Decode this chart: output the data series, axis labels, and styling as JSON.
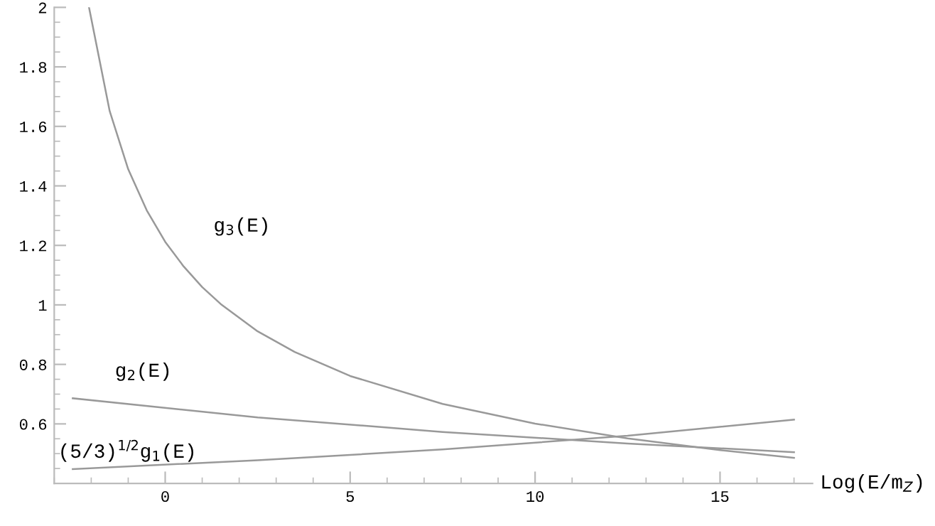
{
  "chart_data": {
    "type": "line",
    "xlabel": "Log(E/m$_{Z}$)",
    "xlim": [
      -3,
      17.5
    ],
    "ylim": [
      0.4,
      2
    ],
    "xticks": [
      0,
      5,
      10,
      15
    ],
    "yticks": [
      0.6,
      0.8,
      1,
      1.2,
      1.4,
      1.6,
      1.8,
      2
    ],
    "grid": false,
    "legend": false,
    "marker": "none",
    "line_style": "solid",
    "series": [
      {
        "name": "g$_{3}$(E)",
        "color": "#999999",
        "x": [
          -2.06,
          -1.5,
          -1,
          -0.5,
          0,
          0.5,
          1,
          1.5,
          2.5,
          3.5,
          5,
          7.5,
          10,
          12.5,
          15,
          17
        ],
        "values": [
          2.0,
          1.651,
          1.456,
          1.318,
          1.212,
          1.129,
          1.06,
          1.003,
          0.911,
          0.842,
          0.761,
          0.667,
          0.601,
          0.551,
          0.512,
          0.486
        ]
      },
      {
        "name": "g$_{2}$(E)",
        "color": "#999999",
        "x": [
          -2.5,
          2.5,
          7.5,
          12.5,
          17
        ],
        "values": [
          0.686,
          0.622,
          0.573,
          0.534,
          0.505
        ]
      },
      {
        "name": "(5/3)$^{1/2}$g$_{1}$(E)",
        "color": "#999999",
        "x": [
          -2.5,
          2.5,
          7.5,
          12.5,
          17
        ],
        "values": [
          0.448,
          0.478,
          0.514,
          0.56,
          0.614
        ]
      }
    ]
  }
}
